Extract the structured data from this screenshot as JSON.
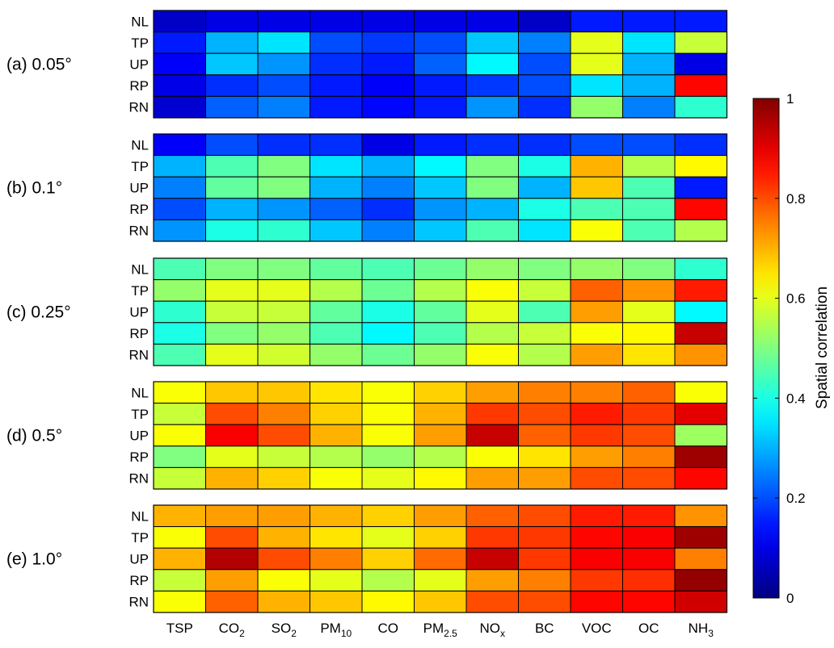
{
  "chart_data": {
    "type": "heatmap",
    "colorbar": {
      "label": "Spatial correlation",
      "colormap": "jet",
      "range": [
        0,
        1
      ],
      "ticks": [
        "0",
        "0.2",
        "0.4",
        "0.6",
        "0.8",
        "1"
      ],
      "tick_values": [
        0,
        0.2,
        0.4,
        0.6,
        0.8,
        1
      ]
    },
    "columns": [
      {
        "base": "TSP",
        "sub": ""
      },
      {
        "base": "CO",
        "sub": "2"
      },
      {
        "base": "SO",
        "sub": "2"
      },
      {
        "base": "PM",
        "sub": "10"
      },
      {
        "base": "CO",
        "sub": ""
      },
      {
        "base": "PM",
        "sub": "2.5"
      },
      {
        "base": "NO",
        "sub": "x"
      },
      {
        "base": "BC",
        "sub": ""
      },
      {
        "base": "VOC",
        "sub": ""
      },
      {
        "base": "OC",
        "sub": ""
      },
      {
        "base": "NH",
        "sub": "3"
      }
    ],
    "rows": [
      "NL",
      "TP",
      "UP",
      "RP",
      "RN"
    ],
    "panels": [
      {
        "label": "(a) 0.05°",
        "values": [
          [
            0.07,
            0.1,
            0.1,
            0.1,
            0.1,
            0.1,
            0.1,
            0.07,
            0.15,
            0.15,
            0.15
          ],
          [
            0.15,
            0.3,
            0.35,
            0.2,
            0.18,
            0.2,
            0.32,
            0.25,
            0.6,
            0.35,
            0.57
          ],
          [
            0.12,
            0.32,
            0.27,
            0.17,
            0.15,
            0.22,
            0.37,
            0.2,
            0.6,
            0.3,
            0.1
          ],
          [
            0.1,
            0.17,
            0.2,
            0.15,
            0.12,
            0.15,
            0.18,
            0.2,
            0.35,
            0.3,
            0.87
          ],
          [
            0.08,
            0.22,
            0.25,
            0.15,
            0.13,
            0.15,
            0.27,
            0.17,
            0.52,
            0.25,
            0.42
          ]
        ]
      },
      {
        "label": "(b) 0.1°",
        "values": [
          [
            0.12,
            0.2,
            0.17,
            0.17,
            0.1,
            0.15,
            0.17,
            0.17,
            0.2,
            0.2,
            0.17
          ],
          [
            0.3,
            0.45,
            0.5,
            0.35,
            0.3,
            0.37,
            0.5,
            0.4,
            0.7,
            0.55,
            0.63
          ],
          [
            0.25,
            0.47,
            0.5,
            0.3,
            0.25,
            0.32,
            0.5,
            0.3,
            0.68,
            0.45,
            0.15
          ],
          [
            0.2,
            0.3,
            0.27,
            0.22,
            0.17,
            0.27,
            0.3,
            0.4,
            0.45,
            0.45,
            0.87
          ],
          [
            0.27,
            0.4,
            0.42,
            0.32,
            0.25,
            0.32,
            0.45,
            0.35,
            0.62,
            0.45,
            0.55
          ]
        ]
      },
      {
        "label": "(c) 0.25°",
        "values": [
          [
            0.45,
            0.5,
            0.5,
            0.47,
            0.45,
            0.48,
            0.52,
            0.5,
            0.52,
            0.5,
            0.42
          ],
          [
            0.52,
            0.6,
            0.6,
            0.55,
            0.48,
            0.55,
            0.62,
            0.57,
            0.78,
            0.73,
            0.85
          ],
          [
            0.42,
            0.57,
            0.57,
            0.47,
            0.4,
            0.47,
            0.6,
            0.45,
            0.72,
            0.6,
            0.37
          ],
          [
            0.4,
            0.5,
            0.52,
            0.45,
            0.37,
            0.45,
            0.55,
            0.57,
            0.62,
            0.63,
            0.93
          ],
          [
            0.45,
            0.6,
            0.58,
            0.52,
            0.48,
            0.52,
            0.62,
            0.55,
            0.72,
            0.65,
            0.73
          ]
        ]
      },
      {
        "label": "(d) 0.5°",
        "values": [
          [
            0.62,
            0.68,
            0.68,
            0.65,
            0.62,
            0.67,
            0.72,
            0.75,
            0.75,
            0.78,
            0.62
          ],
          [
            0.57,
            0.8,
            0.75,
            0.67,
            0.62,
            0.7,
            0.82,
            0.8,
            0.85,
            0.82,
            0.9
          ],
          [
            0.62,
            0.88,
            0.8,
            0.7,
            0.62,
            0.72,
            0.93,
            0.78,
            0.82,
            0.8,
            0.53
          ],
          [
            0.5,
            0.6,
            0.57,
            0.55,
            0.52,
            0.55,
            0.62,
            0.65,
            0.72,
            0.75,
            0.97
          ],
          [
            0.57,
            0.7,
            0.67,
            0.62,
            0.6,
            0.63,
            0.72,
            0.72,
            0.8,
            0.8,
            0.87
          ]
        ]
      },
      {
        "label": "(e) 1.0°",
        "values": [
          [
            0.7,
            0.72,
            0.72,
            0.7,
            0.67,
            0.72,
            0.78,
            0.8,
            0.85,
            0.85,
            0.73
          ],
          [
            0.62,
            0.8,
            0.7,
            0.65,
            0.6,
            0.67,
            0.82,
            0.82,
            0.87,
            0.88,
            0.97
          ],
          [
            0.7,
            0.95,
            0.8,
            0.75,
            0.67,
            0.77,
            0.93,
            0.82,
            0.88,
            0.88,
            0.75
          ],
          [
            0.57,
            0.72,
            0.62,
            0.6,
            0.55,
            0.6,
            0.72,
            0.75,
            0.82,
            0.83,
            0.98
          ],
          [
            0.62,
            0.78,
            0.7,
            0.68,
            0.63,
            0.68,
            0.8,
            0.8,
            0.87,
            0.87,
            0.92
          ]
        ]
      }
    ]
  }
}
